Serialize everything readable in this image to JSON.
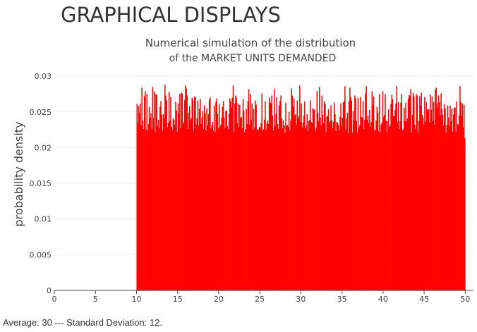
{
  "page": {
    "heading": "GRAPHICAL DISPLAYS",
    "footer": "Average: 30 --- Standard Deviation: 12."
  },
  "chart_data": {
    "type": "bar",
    "title_lines": [
      "Numerical simulation of the distribution",
      "of the MARKET UNITS DEMANDED"
    ],
    "xlabel": "",
    "ylabel": "probability density",
    "xlim": [
      0,
      51
    ],
    "ylim": [
      0,
      0.031
    ],
    "x_ticks": [
      "0",
      "5",
      "10",
      "15",
      "20",
      "25",
      "30",
      "35",
      "40",
      "45",
      "50"
    ],
    "y_ticks": [
      "0",
      "0.005",
      "0.01",
      "0.015",
      "0.02",
      "0.025",
      "0.03"
    ],
    "grid": true,
    "legend": "none",
    "bar_color": "#ff0000",
    "bin_range": [
      10,
      50
    ],
    "bin_count": 400,
    "bin_width": 0.1,
    "values": [
      0.0261,
      0.0234,
      0.0258,
      0.0249,
      0.0262,
      0.0231,
      0.0284,
      0.0238,
      0.0226,
      0.0272,
      0.0279,
      0.0225,
      0.0275,
      0.0223,
      0.0233,
      0.0257,
      0.0242,
      0.0248,
      0.0226,
      0.0285,
      0.0241,
      0.0279,
      0.0222,
      0.0275,
      0.0274,
      0.023,
      0.0239,
      0.0227,
      0.0257,
      0.0265,
      0.0246,
      0.0223,
      0.0247,
      0.0241,
      0.0288,
      0.0273,
      0.0266,
      0.0229,
      0.0235,
      0.0278,
      0.0237,
      0.0271,
      0.0229,
      0.0225,
      0.0241,
      0.0239,
      0.0231,
      0.0264,
      0.0252,
      0.0222,
      0.0262,
      0.0247,
      0.0275,
      0.0227,
      0.0277,
      0.0276,
      0.0233,
      0.0236,
      0.0267,
      0.0287,
      0.0283,
      0.0273,
      0.0226,
      0.0249,
      0.0258,
      0.0238,
      0.0241,
      0.027,
      0.0266,
      0.0223,
      0.0271,
      0.0271,
      0.0232,
      0.0241,
      0.0266,
      0.0231,
      0.0254,
      0.0268,
      0.0233,
      0.0242,
      0.0251,
      0.0226,
      0.0259,
      0.0248,
      0.0224,
      0.0255,
      0.0231,
      0.0247,
      0.0267,
      0.027,
      0.0227,
      0.0232,
      0.0236,
      0.0224,
      0.0259,
      0.0222,
      0.0264,
      0.0269,
      0.0247,
      0.0227,
      0.0261,
      0.0229,
      0.0232,
      0.0242,
      0.0257,
      0.0265,
      0.0242,
      0.0228,
      0.0251,
      0.0252,
      0.023,
      0.0226,
      0.0247,
      0.0269,
      0.0265,
      0.0256,
      0.027,
      0.0287,
      0.0222,
      0.0262,
      0.0273,
      0.027,
      0.0234,
      0.0262,
      0.0229,
      0.026,
      0.0241,
      0.0243,
      0.0227,
      0.0268,
      0.0252,
      0.0221,
      0.0226,
      0.0254,
      0.0233,
      0.0265,
      0.0282,
      0.0232,
      0.0275,
      0.0239,
      0.0262,
      0.0225,
      0.0254,
      0.0228,
      0.0266,
      0.026,
      0.0224,
      0.0226,
      0.0225,
      0.0229,
      0.0228,
      0.0234,
      0.0276,
      0.0223,
      0.0226,
      0.0239,
      0.0265,
      0.0225,
      0.0234,
      0.0238,
      0.0233,
      0.027,
      0.0263,
      0.0262,
      0.0273,
      0.0245,
      0.0224,
      0.0282,
      0.023,
      0.0247,
      0.0271,
      0.0233,
      0.0226,
      0.0259,
      0.0265,
      0.0273,
      0.0241,
      0.0227,
      0.0238,
      0.0231,
      0.0221,
      0.0263,
      0.023,
      0.0232,
      0.0229,
      0.025,
      0.0224,
      0.0238,
      0.0283,
      0.0273,
      0.0257,
      0.0269,
      0.0245,
      0.0247,
      0.0232,
      0.0266,
      0.0241,
      0.0244,
      0.0287,
      0.0236,
      0.0262,
      0.0228,
      0.0235,
      0.0245,
      0.0265,
      0.0227,
      0.0231,
      0.0247,
      0.0223,
      0.0237,
      0.0239,
      0.0266,
      0.0236,
      0.0234,
      0.0255,
      0.0254,
      0.0253,
      0.0223,
      0.0228,
      0.0279,
      0.0249,
      0.0237,
      0.0285,
      0.0242,
      0.0231,
      0.0273,
      0.0246,
      0.0234,
      0.0265,
      0.0261,
      0.0222,
      0.0243,
      0.0245,
      0.0254,
      0.0235,
      0.0237,
      0.0259,
      0.0238,
      0.0227,
      0.0236,
      0.0263,
      0.0247,
      0.0223,
      0.0236,
      0.0235,
      0.0232,
      0.0224,
      0.0243,
      0.0262,
      0.023,
      0.0242,
      0.0263,
      0.0265,
      0.0286,
      0.0225,
      0.0241,
      0.0249,
      0.0221,
      0.0265,
      0.0284,
      0.0271,
      0.0266,
      0.0221,
      0.0251,
      0.0238,
      0.0273,
      0.0269,
      0.0237,
      0.0221,
      0.027,
      0.0228,
      0.0231,
      0.0271,
      0.0243,
      0.0242,
      0.0265,
      0.0226,
      0.0239,
      0.0276,
      0.0286,
      0.0239,
      0.0245,
      0.0234,
      0.0253,
      0.0229,
      0.0236,
      0.0279,
      0.0259,
      0.0272,
      0.0225,
      0.0224,
      0.0238,
      0.0257,
      0.0249,
      0.0223,
      0.0275,
      0.0222,
      0.0232,
      0.0235,
      0.0279,
      0.0243,
      0.0246,
      0.0275,
      0.0238,
      0.0222,
      0.0237,
      0.0254,
      0.0229,
      0.0231,
      0.0261,
      0.0274,
      0.0268,
      0.0244,
      0.0244,
      0.0253,
      0.0262,
      0.0286,
      0.0236,
      0.0264,
      0.0226,
      0.0237,
      0.0263,
      0.0275,
      0.0224,
      0.0226,
      0.0256,
      0.0237,
      0.0263,
      0.0236,
      0.0241,
      0.0268,
      0.0274,
      0.0272,
      0.0282,
      0.0221,
      0.0246,
      0.0277,
      0.0272,
      0.0232,
      0.0226,
      0.0275,
      0.0273,
      0.0221,
      0.0237,
      0.0272,
      0.0259,
      0.0277,
      0.0246,
      0.0242,
      0.0232,
      0.0271,
      0.0236,
      0.0264,
      0.0254,
      0.0251,
      0.0254,
      0.0235,
      0.0274,
      0.0253,
      0.0272,
      0.0237,
      0.0264,
      0.0232,
      0.0281,
      0.0284,
      0.0256,
      0.0263,
      0.0273,
      0.0264,
      0.0245,
      0.0276,
      0.0254,
      0.0246,
      0.0231,
      0.0261,
      0.0255,
      0.0221,
      0.0232,
      0.0259,
      0.0242,
      0.023,
      0.0259,
      0.0237,
      0.0255,
      0.0222,
      0.0246,
      0.0256,
      0.0256,
      0.0222,
      0.0265,
      0.0233,
      0.0231,
      0.0245,
      0.0286,
      0.0264,
      0.0244,
      0.0262,
      0.0228,
      0.026,
      0.0213
    ]
  }
}
